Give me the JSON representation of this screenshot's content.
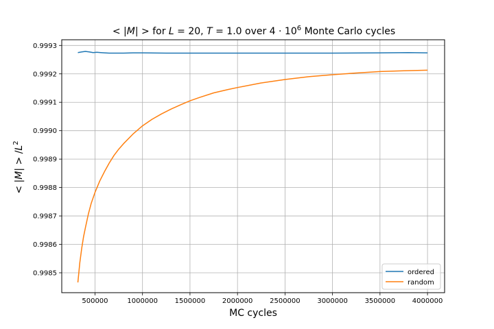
{
  "chart_data": {
    "type": "line",
    "title_parts": {
      "p1": "< |",
      "p2": "M",
      "p3": "| >  for ",
      "p4": "L",
      "p5": " = 20, ",
      "p6": "T",
      "p7": " = 1.0 over 4 · 10",
      "p8": "6",
      "p9": " Monte Carlo cycles"
    },
    "xlabel": "MC cycles",
    "ylabel_parts": {
      "p1": "< |",
      "p2": "M",
      "p3": "| > /",
      "p4": "L",
      "p5": "2"
    },
    "xlim": [
      150000,
      4180000
    ],
    "ylim": [
      0.99843,
      0.99932
    ],
    "xticks": [
      500000,
      1000000,
      1500000,
      2000000,
      2500000,
      3000000,
      3500000,
      4000000
    ],
    "xtick_labels": [
      "500000",
      "1000000",
      "1500000",
      "2000000",
      "2500000",
      "3000000",
      "3500000",
      "4000000"
    ],
    "yticks": [
      0.9985,
      0.9986,
      0.9987,
      0.9988,
      0.9989,
      0.999,
      0.9991,
      0.9992,
      0.9993
    ],
    "ytick_labels": [
      "0.9985",
      "0.9986",
      "0.9987",
      "0.9988",
      "0.9989",
      "0.9990",
      "0.9991",
      "0.9992",
      "0.9993"
    ],
    "grid": true,
    "legend_position": "lower-right",
    "series": [
      {
        "name": "ordered",
        "color": "#1f77b4",
        "x": [
          320000,
          360000,
          400000,
          440000,
          480000,
          520000,
          560000,
          600000,
          650000,
          700000,
          800000,
          900000,
          1000000,
          1250000,
          1500000,
          2000000,
          2500000,
          3000000,
          3500000,
          3800000,
          4000000
        ],
        "y": [
          0.999275,
          0.999277,
          0.999279,
          0.999277,
          0.999275,
          0.999276,
          0.999275,
          0.999274,
          0.999273,
          0.999273,
          0.999273,
          0.999274,
          0.999274,
          0.999273,
          0.999273,
          0.999273,
          0.999273,
          0.999273,
          0.999274,
          0.999275,
          0.999274
        ]
      },
      {
        "name": "random",
        "color": "#ff7f0e",
        "x": [
          320000,
          340000,
          360000,
          380000,
          400000,
          430000,
          460000,
          500000,
          550000,
          600000,
          650000,
          700000,
          750000,
          800000,
          900000,
          1000000,
          1100000,
          1200000,
          1300000,
          1400000,
          1500000,
          1600000,
          1750000,
          1900000,
          2000000,
          2250000,
          2500000,
          2750000,
          3000000,
          3250000,
          3500000,
          3750000,
          4000000
        ],
        "y": [
          0.998466,
          0.998535,
          0.998586,
          0.998627,
          0.99866,
          0.998707,
          0.998744,
          0.998783,
          0.998823,
          0.998856,
          0.998886,
          0.998913,
          0.998935,
          0.998954,
          0.998988,
          0.999017,
          0.99904,
          0.999059,
          0.999076,
          0.999091,
          0.999105,
          0.999117,
          0.999133,
          0.999145,
          0.999152,
          0.999168,
          0.99918,
          0.99919,
          0.999197,
          0.999203,
          0.999208,
          0.999211,
          0.999213
        ]
      }
    ]
  }
}
